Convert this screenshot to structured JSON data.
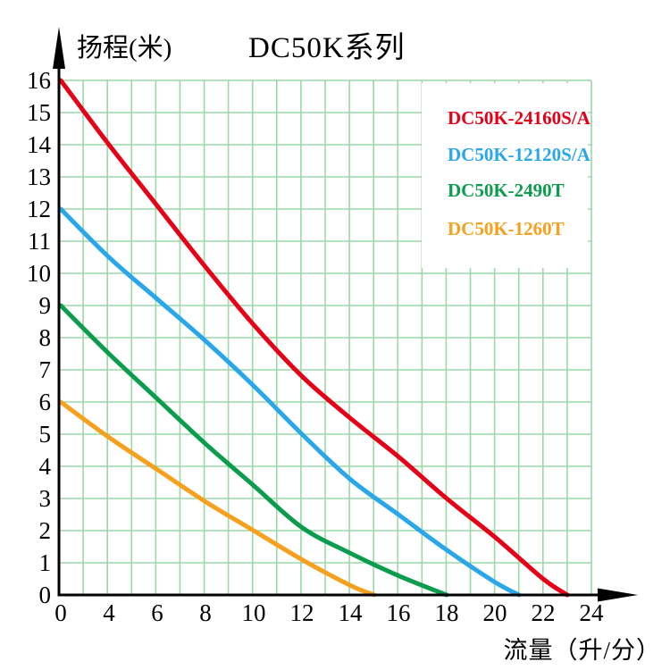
{
  "title": "DC50K系列",
  "y_axis_title": "扬程(米)",
  "x_axis_title": "流量（升/分）",
  "colors": {
    "red": "#e60017",
    "blue": "#29a7e9",
    "green": "#0b9c4d",
    "orange": "#f6a01e",
    "grid": "#9bd8a6",
    "axis": "#000000",
    "background": "#ffffff"
  },
  "legend": {
    "position": "top-right",
    "items": [
      {
        "label": "DC50K-24160S/A",
        "color": "#e60017"
      },
      {
        "label": "DC50K-12120S/A",
        "color": "#29a7e9"
      },
      {
        "label": "DC50K-2490T",
        "color": "#0b9c4d"
      },
      {
        "label": "DC50K-1260T",
        "color": "#f6a01e"
      }
    ]
  },
  "chart_data": {
    "type": "line",
    "title": "DC50K系列",
    "xlabel": "流量（升/分）",
    "ylabel": "扬程(米)",
    "grid": true,
    "legend_position": "top-right",
    "x_tick_labels": [
      0,
      4,
      6,
      8,
      10,
      12,
      14,
      16,
      18,
      20,
      22,
      24
    ],
    "x_tick_spacing": "equal (non-linear value scale as printed)",
    "y_ticks": [
      0,
      1,
      2,
      3,
      4,
      5,
      6,
      7,
      8,
      9,
      10,
      11,
      12,
      13,
      14,
      15,
      16
    ],
    "ylim": [
      0,
      16
    ],
    "series": [
      {
        "name": "DC50K-24160S/A",
        "color": "#e60017",
        "x": [
          0,
          4,
          6,
          8,
          10,
          12,
          14,
          16,
          18,
          20,
          22,
          23
        ],
        "y": [
          16,
          14.0,
          12.1,
          10.2,
          8.4,
          6.8,
          5.5,
          4.3,
          3.0,
          1.8,
          0.5,
          0
        ]
      },
      {
        "name": "DC50K-12120S/A",
        "color": "#29a7e9",
        "x": [
          0,
          4,
          6,
          8,
          10,
          12,
          14,
          16,
          18,
          20,
          21
        ],
        "y": [
          12,
          10.5,
          9.2,
          7.9,
          6.5,
          5.0,
          3.6,
          2.5,
          1.4,
          0.4,
          0
        ]
      },
      {
        "name": "DC50K-2490T",
        "color": "#0b9c4d",
        "x": [
          0,
          4,
          6,
          8,
          10,
          12,
          14,
          16,
          18
        ],
        "y": [
          9,
          7.5,
          6.1,
          4.7,
          3.4,
          2.1,
          1.3,
          0.6,
          0
        ]
      },
      {
        "name": "DC50K-1260T",
        "color": "#f6a01e",
        "x": [
          0,
          4,
          6,
          8,
          10,
          12,
          14,
          15
        ],
        "y": [
          6,
          4.9,
          3.9,
          2.9,
          2.0,
          1.1,
          0.3,
          0
        ]
      }
    ]
  }
}
